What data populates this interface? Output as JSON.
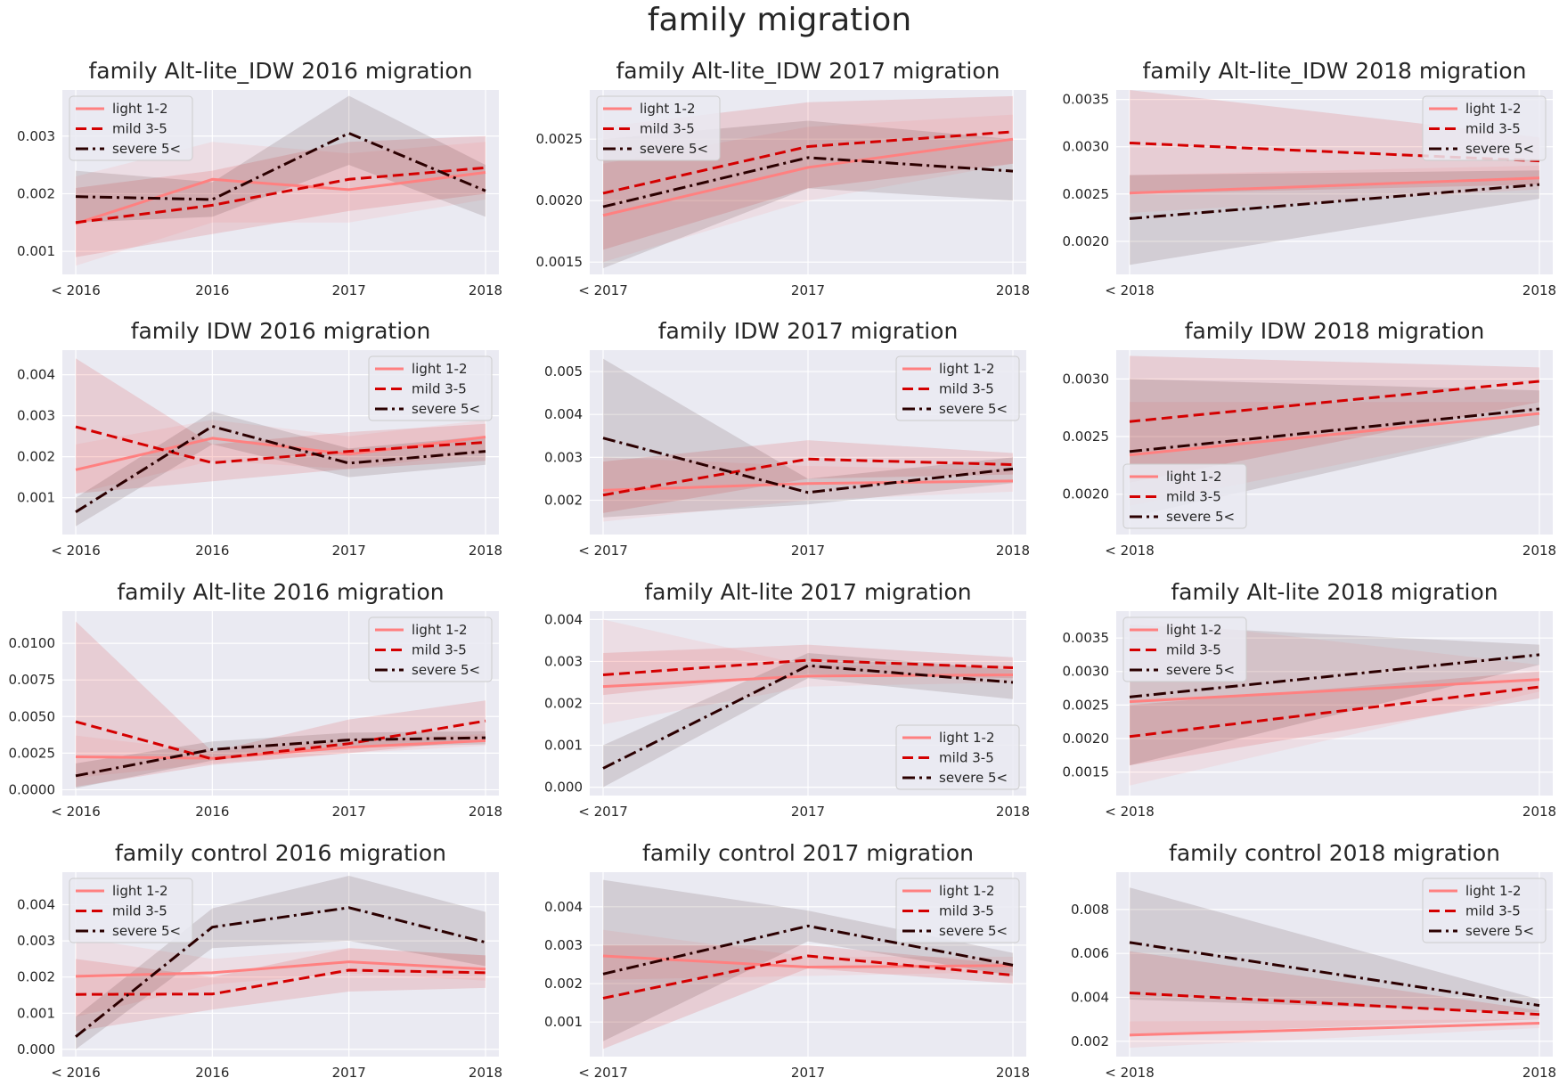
{
  "page": {
    "title": "family migration"
  },
  "legend_labels": [
    "light 1-2",
    "mild 3-5",
    "severe 5<"
  ],
  "series_styles": [
    {
      "color": "#ff8080",
      "dash": "",
      "width": 3
    },
    {
      "color": "#d40000",
      "dash": "12,6",
      "width": 3
    },
    {
      "color": "#2b0000",
      "dash": "14,5,3,5",
      "width": 3
    }
  ],
  "colors": {
    "background": "#eaeaf2",
    "grid": "#ffffff",
    "band_opacity": 0.12
  },
  "chart_data": [
    {
      "type": "line",
      "title": "family Alt-lite_IDW 2016 migration",
      "categories": [
        "< 2016",
        "2016",
        "2017",
        "2018"
      ],
      "yticks": [
        0.001,
        0.002,
        0.003
      ],
      "ylim": [
        0.0006,
        0.0038
      ],
      "legend": "top-left",
      "series": [
        {
          "name": "light 1-2",
          "values": [
            0.00148,
            0.00225,
            0.00207,
            0.00237
          ],
          "ci_low": [
            0.00075,
            0.0015,
            0.0015,
            0.0019
          ],
          "ci_high": [
            0.0023,
            0.0029,
            0.0027,
            0.0029
          ]
        },
        {
          "name": "mild 3-5",
          "values": [
            0.0015,
            0.0018,
            0.00225,
            0.00245
          ],
          "ci_low": [
            0.0009,
            0.0013,
            0.0017,
            0.002
          ],
          "ci_high": [
            0.0021,
            0.0024,
            0.0029,
            0.003
          ]
        },
        {
          "name": "severe 5<",
          "values": [
            0.00195,
            0.0019,
            0.00305,
            0.00205
          ],
          "ci_low": [
            0.0015,
            0.0016,
            0.0025,
            0.0016
          ],
          "ci_high": [
            0.0024,
            0.0022,
            0.0037,
            0.0025
          ]
        }
      ]
    },
    {
      "type": "line",
      "title": "family Alt-lite_IDW 2017 migration",
      "categories": [
        "< 2017",
        "2017",
        "2018"
      ],
      "yticks": [
        0.0015,
        0.002,
        0.0025
      ],
      "ylim": [
        0.0014,
        0.0029
      ],
      "legend": "top-left",
      "series": [
        {
          "name": "light 1-2",
          "values": [
            0.00188,
            0.00227,
            0.0025
          ],
          "ci_low": [
            0.0015,
            0.002,
            0.0023
          ],
          "ci_high": [
            0.0023,
            0.0026,
            0.0027
          ]
        },
        {
          "name": "mild 3-5",
          "values": [
            0.00206,
            0.00244,
            0.00256
          ],
          "ci_low": [
            0.0016,
            0.0021,
            0.0023
          ],
          "ci_high": [
            0.0026,
            0.0028,
            0.00285
          ]
        },
        {
          "name": "severe 5<",
          "values": [
            0.00195,
            0.00235,
            0.00224
          ],
          "ci_low": [
            0.00145,
            0.0021,
            0.002
          ],
          "ci_high": [
            0.0025,
            0.00265,
            0.0025
          ]
        }
      ]
    },
    {
      "type": "line",
      "title": "family Alt-lite_IDW 2018 migration",
      "categories": [
        "< 2018",
        "2018"
      ],
      "yticks": [
        0.002,
        0.0025,
        0.003,
        0.0035
      ],
      "ylim": [
        0.00165,
        0.0036
      ],
      "legend": "top-right",
      "series": [
        {
          "name": "light 1-2",
          "values": [
            0.00251,
            0.00267
          ],
          "ci_low": [
            0.0023,
            0.00255
          ],
          "ci_high": [
            0.0027,
            0.0028
          ]
        },
        {
          "name": "mild 3-5",
          "values": [
            0.00304,
            0.00285
          ],
          "ci_low": [
            0.0025,
            0.0026
          ],
          "ci_high": [
            0.0036,
            0.0031
          ]
        },
        {
          "name": "severe 5<",
          "values": [
            0.00224,
            0.0026
          ],
          "ci_low": [
            0.00175,
            0.00245
          ],
          "ci_high": [
            0.0027,
            0.00275
          ]
        }
      ]
    },
    {
      "type": "line",
      "title": "family IDW 2016 migration",
      "categories": [
        "< 2016",
        "2016",
        "2017",
        "2018"
      ],
      "yticks": [
        0.001,
        0.002,
        0.003,
        0.004
      ],
      "ylim": [
        0.0001,
        0.0046
      ],
      "legend": "top-right",
      "series": [
        {
          "name": "light 1-2",
          "values": [
            0.00168,
            0.00245,
            0.00206,
            0.00248
          ],
          "ci_low": [
            0.0011,
            0.0019,
            0.0017,
            0.0021
          ],
          "ci_high": [
            0.0023,
            0.0029,
            0.0025,
            0.0029
          ]
        },
        {
          "name": "mild 3-5",
          "values": [
            0.00273,
            0.00185,
            0.00213,
            0.00235
          ],
          "ci_low": [
            0.0011,
            0.0014,
            0.0017,
            0.0019
          ],
          "ci_high": [
            0.0044,
            0.0023,
            0.0026,
            0.0028
          ]
        },
        {
          "name": "severe 5<",
          "values": [
            0.00065,
            0.00274,
            0.00184,
            0.00213
          ],
          "ci_low": [
            0.0003,
            0.0023,
            0.0015,
            0.0018
          ],
          "ci_high": [
            0.001,
            0.0031,
            0.0022,
            0.0025
          ]
        }
      ]
    },
    {
      "type": "line",
      "title": "family IDW 2017 migration",
      "categories": [
        "< 2017",
        "2017",
        "2018"
      ],
      "yticks": [
        0.002,
        0.003,
        0.004,
        0.005
      ],
      "ylim": [
        0.0012,
        0.0055
      ],
      "legend": "top-right",
      "series": [
        {
          "name": "light 1-2",
          "values": [
            0.00223,
            0.00239,
            0.00245
          ],
          "ci_low": [
            0.0015,
            0.002,
            0.0022
          ],
          "ci_high": [
            0.003,
            0.0028,
            0.0027
          ]
        },
        {
          "name": "mild 3-5",
          "values": [
            0.00212,
            0.00296,
            0.00283
          ],
          "ci_low": [
            0.0017,
            0.0025,
            0.0026
          ],
          "ci_high": [
            0.0029,
            0.0034,
            0.0031
          ]
        },
        {
          "name": "severe 5<",
          "values": [
            0.00345,
            0.00218,
            0.00273
          ],
          "ci_low": [
            0.0016,
            0.0019,
            0.0024
          ],
          "ci_high": [
            0.0053,
            0.0025,
            0.003
          ]
        }
      ]
    },
    {
      "type": "line",
      "title": "family IDW 2018 migration",
      "categories": [
        "< 2018",
        "2018"
      ],
      "yticks": [
        0.002,
        0.0025,
        0.003
      ],
      "ylim": [
        0.00165,
        0.00325
      ],
      "legend": "bottom-left",
      "series": [
        {
          "name": "light 1-2",
          "values": [
            0.00234,
            0.0027
          ],
          "ci_low": [
            0.0019,
            0.0026
          ],
          "ci_high": [
            0.0028,
            0.0028
          ]
        },
        {
          "name": "mild 3-5",
          "values": [
            0.00263,
            0.00298
          ],
          "ci_low": [
            0.0021,
            0.0028
          ],
          "ci_high": [
            0.0032,
            0.0031
          ]
        },
        {
          "name": "severe 5<",
          "values": [
            0.00237,
            0.00274
          ],
          "ci_low": [
            0.0018,
            0.0026
          ],
          "ci_high": [
            0.003,
            0.0029
          ]
        }
      ]
    },
    {
      "type": "line",
      "title": "family Alt-lite 2016 migration",
      "categories": [
        "< 2016",
        "2016",
        "2017",
        "2018"
      ],
      "yticks": [
        0.0,
        0.0025,
        0.005,
        0.0075,
        0.01
      ],
      "ylim": [
        -0.0004,
        0.0122
      ],
      "legend": "top-right",
      "series": [
        {
          "name": "light 1-2",
          "values": [
            0.00225,
            0.00215,
            0.0029,
            0.00335
          ],
          "ci_low": [
            0.0008,
            0.0018,
            0.0025,
            0.003
          ],
          "ci_high": [
            0.0037,
            0.0026,
            0.0034,
            0.0038
          ]
        },
        {
          "name": "mild 3-5",
          "values": [
            0.00465,
            0.0021,
            0.00315,
            0.0047
          ],
          "ci_low": [
            0.0002,
            0.0017,
            0.0025,
            0.0034
          ],
          "ci_high": [
            0.0115,
            0.0026,
            0.0048,
            0.0061
          ]
        },
        {
          "name": "severe 5<",
          "values": [
            0.00095,
            0.00275,
            0.0034,
            0.00355
          ],
          "ci_low": [
            0.0001,
            0.002,
            0.0029,
            0.0031
          ],
          "ci_high": [
            0.0018,
            0.0033,
            0.0039,
            0.004
          ]
        }
      ]
    },
    {
      "type": "line",
      "title": "family Alt-lite 2017 migration",
      "categories": [
        "< 2017",
        "2017",
        "2018"
      ],
      "yticks": [
        0.0,
        0.001,
        0.002,
        0.003,
        0.004
      ],
      "ylim": [
        -0.0002,
        0.0042
      ],
      "legend": "bottom-right",
      "series": [
        {
          "name": "light 1-2",
          "values": [
            0.0024,
            0.00265,
            0.00268
          ],
          "ci_low": [
            0.0015,
            0.0024,
            0.0025
          ],
          "ci_high": [
            0.004,
            0.0029,
            0.0029
          ]
        },
        {
          "name": "mild 3-5",
          "values": [
            0.00268,
            0.00303,
            0.00285
          ],
          "ci_low": [
            0.0022,
            0.0027,
            0.0026
          ],
          "ci_high": [
            0.0032,
            0.0034,
            0.0031
          ]
        },
        {
          "name": "severe 5<",
          "values": [
            0.00045,
            0.0029,
            0.0025
          ],
          "ci_low": [
            0.0,
            0.0026,
            0.0021
          ],
          "ci_high": [
            0.001,
            0.0032,
            0.0028
          ]
        }
      ]
    },
    {
      "type": "line",
      "title": "family Alt-lite 2018 migration",
      "categories": [
        "< 2018",
        "2018"
      ],
      "yticks": [
        0.0015,
        0.002,
        0.0025,
        0.003,
        0.0035
      ],
      "ylim": [
        0.00115,
        0.0039
      ],
      "legend": "top-left",
      "series": [
        {
          "name": "light 1-2",
          "values": [
            0.00255,
            0.00288
          ],
          "ci_low": [
            0.0013,
            0.0027
          ],
          "ci_high": [
            0.0038,
            0.0031
          ]
        },
        {
          "name": "mild 3-5",
          "values": [
            0.00203,
            0.00277
          ],
          "ci_low": [
            0.0016,
            0.0026
          ],
          "ci_high": [
            0.0025,
            0.003
          ]
        },
        {
          "name": "severe 5<",
          "values": [
            0.00262,
            0.00325
          ],
          "ci_low": [
            0.0016,
            0.0031
          ],
          "ci_high": [
            0.0037,
            0.0034
          ]
        }
      ]
    },
    {
      "type": "line",
      "title": "family control 2016 migration",
      "categories": [
        "< 2016",
        "2016",
        "2017",
        "2018"
      ],
      "yticks": [
        0.0,
        0.001,
        0.002,
        0.003,
        0.004
      ],
      "ylim": [
        -0.0002,
        0.0049
      ],
      "legend": "top-left",
      "series": [
        {
          "name": "light 1-2",
          "values": [
            0.00202,
            0.00212,
            0.00242,
            0.00222
          ],
          "ci_low": [
            0.0009,
            0.0018,
            0.0021,
            0.0019
          ],
          "ci_high": [
            0.0031,
            0.0025,
            0.0028,
            0.0026
          ]
        },
        {
          "name": "mild 3-5",
          "values": [
            0.00152,
            0.00153,
            0.00219,
            0.00212
          ],
          "ci_low": [
            0.0005,
            0.0011,
            0.0016,
            0.0017
          ],
          "ci_high": [
            0.0025,
            0.002,
            0.0028,
            0.0026
          ]
        },
        {
          "name": "severe 5<",
          "values": [
            0.00035,
            0.00338,
            0.00392,
            0.00296
          ],
          "ci_low": [
            0.0,
            0.0028,
            0.003,
            0.0023
          ],
          "ci_high": [
            0.0009,
            0.0039,
            0.0048,
            0.0038
          ]
        }
      ]
    },
    {
      "type": "line",
      "title": "family control 2017 migration",
      "categories": [
        "< 2017",
        "2017",
        "2018"
      ],
      "yticks": [
        0.001,
        0.002,
        0.003,
        0.004
      ],
      "ylim": [
        0.0001,
        0.0049
      ],
      "legend": "top-right",
      "series": [
        {
          "name": "light 1-2",
          "values": [
            0.00272,
            0.00243,
            0.00247
          ],
          "ci_low": [
            0.0021,
            0.0022,
            0.0023
          ],
          "ci_high": [
            0.0034,
            0.0027,
            0.0027
          ]
        },
        {
          "name": "mild 3-5",
          "values": [
            0.00162,
            0.00272,
            0.00222
          ],
          "ci_low": [
            0.0003,
            0.0024,
            0.002
          ],
          "ci_high": [
            0.003,
            0.003,
            0.0025
          ]
        },
        {
          "name": "severe 5<",
          "values": [
            0.00225,
            0.0035,
            0.00248
          ],
          "ci_low": [
            0.0005,
            0.0031,
            0.0022
          ],
          "ci_high": [
            0.0047,
            0.0039,
            0.0028
          ]
        }
      ]
    },
    {
      "type": "line",
      "title": "family control 2018 migration",
      "categories": [
        "< 2018",
        "2018"
      ],
      "yticks": [
        0.002,
        0.004,
        0.006,
        0.008
      ],
      "ylim": [
        0.0013,
        0.0097
      ],
      "legend": "top-right",
      "series": [
        {
          "name": "light 1-2",
          "values": [
            0.00228,
            0.00282
          ],
          "ci_low": [
            0.0017,
            0.0026
          ],
          "ci_high": [
            0.0029,
            0.003
          ]
        },
        {
          "name": "mild 3-5",
          "values": [
            0.0042,
            0.00322
          ],
          "ci_low": [
            0.0023,
            0.003
          ],
          "ci_high": [
            0.0061,
            0.0034
          ]
        },
        {
          "name": "severe 5<",
          "values": [
            0.0065,
            0.00363
          ],
          "ci_low": [
            0.0039,
            0.0033
          ],
          "ci_high": [
            0.009,
            0.0039
          ]
        }
      ]
    }
  ]
}
